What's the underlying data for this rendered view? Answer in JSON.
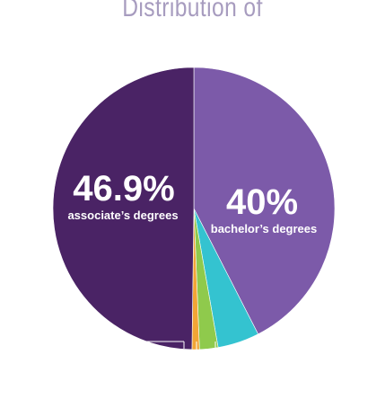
{
  "colors": {
    "title": "#a79cbf",
    "label": "#ffffff",
    "leader": "#ffffff"
  },
  "chart_data": {
    "type": "pie",
    "title": "Distribution of",
    "start_angle_deg": 0,
    "direction": "clockwise",
    "slices": [
      {
        "label": "bachelor's degrees",
        "value": 40,
        "value_label": "40%",
        "sub_label": "bachelor’s degrees",
        "color": "#7c5aa9"
      },
      {
        "label": "",
        "value": 4.5,
        "value_label": "",
        "sub_label": "",
        "color": "#34c3d0"
      },
      {
        "label": "",
        "value": 2,
        "value_label": "",
        "sub_label": "",
        "color": "#8fca4c"
      },
      {
        "label": "",
        "value": 0.8,
        "value_label": "",
        "sub_label": "",
        "color": "#f2a535"
      },
      {
        "label": "associate's degrees",
        "value": 46.9,
        "value_label": "46.9%",
        "sub_label": "associate’s degrees",
        "color": "#4a2365"
      }
    ],
    "legend": "none"
  }
}
